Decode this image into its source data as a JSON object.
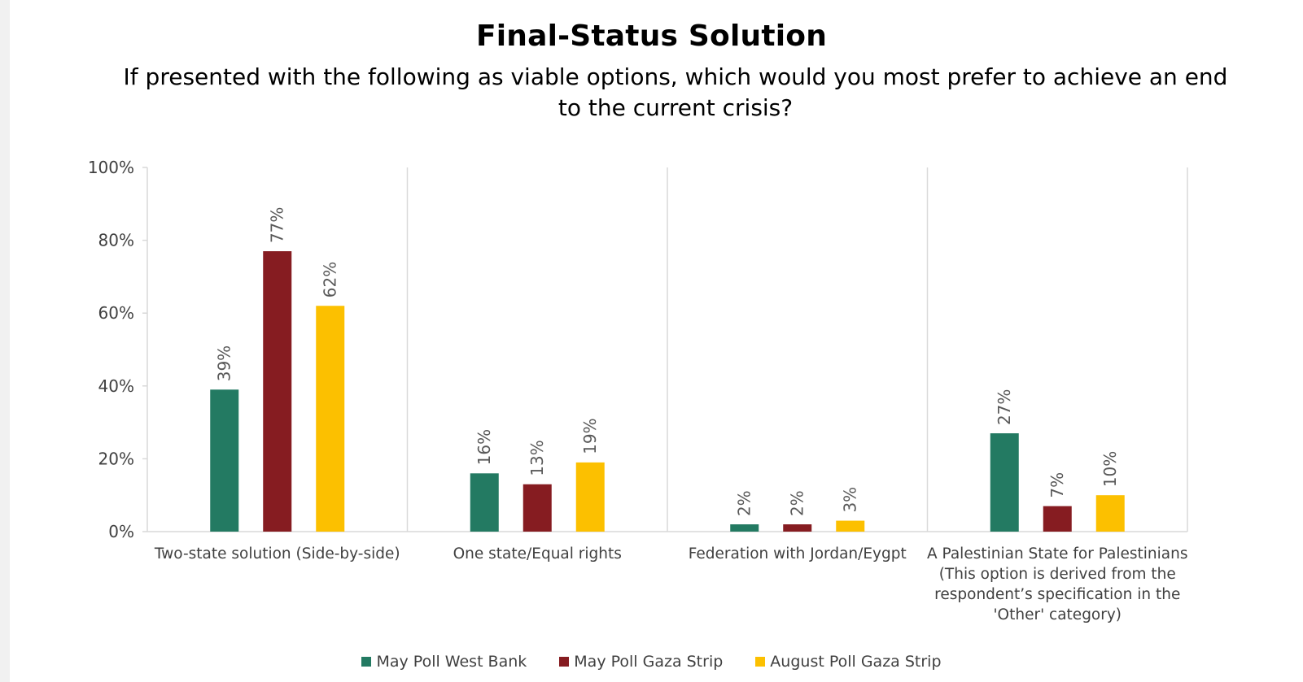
{
  "title": "Final-Status Solution",
  "subtitle": "If presented with the following as viable options, which would you most prefer to achieve an end to the current crisis?",
  "chart_data": {
    "type": "bar",
    "categories": [
      "Two-state solution (Side-by-side)",
      "One state/Equal rights",
      "Federation with Jordan/Eygpt",
      "A Palestinian State for Palestinians (This option is derived from the respondent’s specification in the 'Other' category)"
    ],
    "category_label_lines": [
      [
        "Two-state solution (Side-by-side)"
      ],
      [
        "One state/Equal rights"
      ],
      [
        "Federation with Jordan/Eygpt"
      ],
      [
        "A Palestinian State for Palestinians",
        "(This option is derived from the",
        "respondent’s specification in the",
        "'Other' category)"
      ]
    ],
    "series": [
      {
        "name": "May Poll West Bank",
        "color": "#237a62",
        "values": [
          39,
          16,
          2,
          27
        ],
        "labels": [
          "39%",
          "16%",
          "2%",
          "27%"
        ]
      },
      {
        "name": "May Poll Gaza Strip",
        "color": "#861c21",
        "values": [
          77,
          13,
          2,
          7
        ],
        "labels": [
          "77%",
          "13%",
          "2%",
          "7%"
        ]
      },
      {
        "name": "August Poll Gaza Strip",
        "color": "#fcc000",
        "values": [
          62,
          19,
          3,
          10
        ],
        "labels": [
          "62%",
          "19%",
          "3%",
          "10%"
        ]
      }
    ],
    "yticks": [
      "0%",
      "20%",
      "40%",
      "60%",
      "80%",
      "100%"
    ],
    "ylim": [
      0,
      100
    ],
    "ylabel": "",
    "xlabel": "",
    "grid": false,
    "category_separators": true,
    "legend_position": "bottom"
  }
}
